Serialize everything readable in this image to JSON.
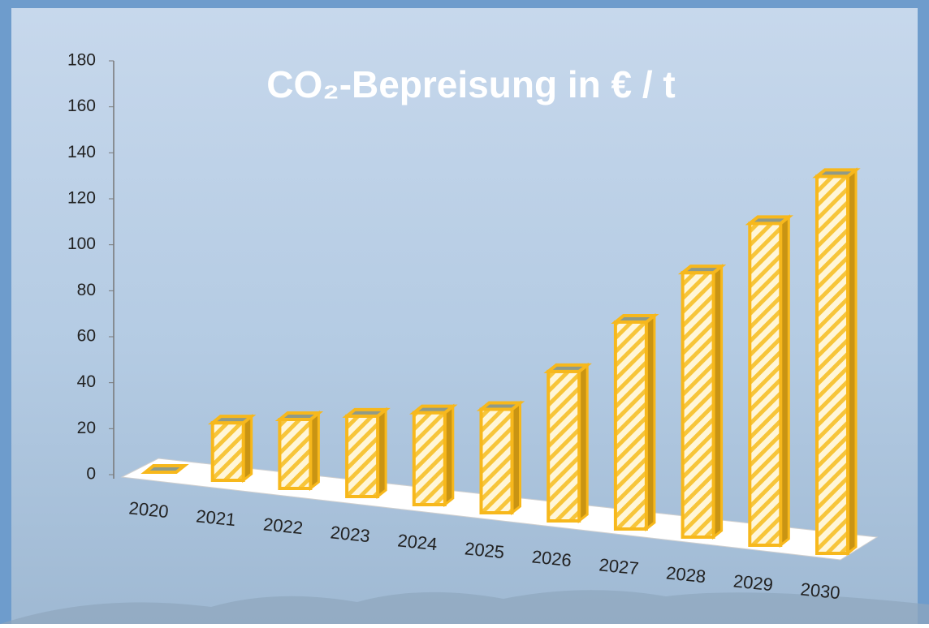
{
  "chart_data": {
    "type": "bar3d",
    "title": "CO₂-Bepreisung in € / t",
    "categories": [
      "2020",
      "2021",
      "2022",
      "2023",
      "2024",
      "2025",
      "2026",
      "2027",
      "2028",
      "2029",
      "2030"
    ],
    "values": [
      0,
      25,
      30,
      35,
      40,
      45,
      65,
      90,
      115,
      140,
      164
    ],
    "color": "#f7b81c",
    "ylim": [
      0,
      180
    ],
    "yticks": [
      0,
      20,
      40,
      60,
      80,
      100,
      120,
      140,
      160,
      180
    ]
  }
}
